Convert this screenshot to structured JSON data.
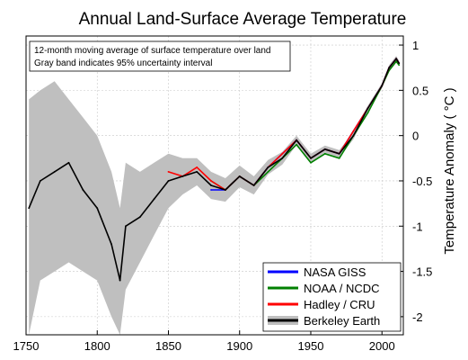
{
  "chart_data": {
    "type": "line",
    "title": "Annual Land-Surface Average Temperature",
    "xlabel": "",
    "ylabel": "Temperature Anomaly ( °C )",
    "xlim": [
      1750,
      2015
    ],
    "ylim": [
      -2.2,
      1.1
    ],
    "xticks": [
      "1750",
      "1800",
      "1850",
      "1900",
      "1950",
      "2000"
    ],
    "yticks": [
      "1",
      "0.5",
      "0",
      "-0.5",
      "-1",
      "-1.5",
      "-2"
    ],
    "y_axis_side": "right",
    "grid": true,
    "annotation": [
      "12-month moving average of surface temperature over land",
      "Gray band indicates 95% uncertainty interval"
    ],
    "legend_position": "bottom-right",
    "series": [
      {
        "name": "NASA GISS",
        "color": "#0000ff",
        "x": [
          1880,
          1890,
          1900,
          1910,
          1920,
          1930,
          1940,
          1950,
          1960,
          1970,
          1980,
          1990,
          2000,
          2005,
          2010,
          2012
        ],
        "values": [
          -0.6,
          -0.6,
          -0.45,
          -0.55,
          -0.35,
          -0.2,
          -0.05,
          -0.25,
          -0.15,
          -0.2,
          0.05,
          0.3,
          0.55,
          0.75,
          0.85,
          0.8
        ]
      },
      {
        "name": "NOAA / NCDC",
        "color": "#008000",
        "x": [
          1880,
          1890,
          1900,
          1910,
          1920,
          1930,
          1940,
          1950,
          1960,
          1970,
          1980,
          1990,
          2000,
          2005,
          2010,
          2012
        ],
        "values": [
          -0.5,
          -0.6,
          -0.45,
          -0.55,
          -0.4,
          -0.25,
          -0.1,
          -0.3,
          -0.2,
          -0.25,
          0.0,
          0.25,
          0.55,
          0.72,
          0.82,
          0.78
        ]
      },
      {
        "name": "Hadley / CRU",
        "color": "#ff0000",
        "x": [
          1850,
          1860,
          1870,
          1880,
          1890,
          1900,
          1910,
          1920,
          1930,
          1940,
          1950,
          1960,
          1970,
          1980,
          1990,
          2000,
          2005,
          2010,
          2012
        ],
        "values": [
          -0.4,
          -0.45,
          -0.35,
          -0.5,
          -0.6,
          -0.45,
          -0.55,
          -0.35,
          -0.2,
          -0.05,
          -0.25,
          -0.15,
          -0.2,
          0.05,
          0.3,
          0.55,
          0.75,
          0.85,
          0.8
        ]
      },
      {
        "name": "Berkeley Earth",
        "color": "#000000",
        "x": [
          1752,
          1760,
          1770,
          1780,
          1790,
          1800,
          1810,
          1816,
          1820,
          1830,
          1840,
          1850,
          1860,
          1870,
          1880,
          1890,
          1900,
          1910,
          1920,
          1930,
          1940,
          1950,
          1960,
          1970,
          1980,
          1990,
          2000,
          2005,
          2010,
          2012
        ],
        "values": [
          -0.8,
          -0.5,
          -0.4,
          -0.3,
          -0.6,
          -0.8,
          -1.2,
          -1.6,
          -1.0,
          -0.9,
          -0.7,
          -0.5,
          -0.45,
          -0.4,
          -0.55,
          -0.6,
          -0.45,
          -0.55,
          -0.35,
          -0.25,
          -0.05,
          -0.25,
          -0.15,
          -0.2,
          0.0,
          0.3,
          0.55,
          0.75,
          0.85,
          0.8
        ]
      }
    ],
    "uncertainty_band": {
      "name": "95% uncertainty interval",
      "color": "#bfbfbf",
      "x": [
        1752,
        1760,
        1770,
        1780,
        1790,
        1800,
        1810,
        1816,
        1820,
        1830,
        1840,
        1850,
        1860,
        1870,
        1880,
        1890,
        1900,
        1910,
        1920,
        1930,
        1940,
        1950,
        1960,
        1970,
        1980,
        1990,
        2000,
        2005,
        2010,
        2012
      ],
      "upper": [
        0.4,
        0.5,
        0.6,
        0.4,
        0.2,
        0.0,
        -0.4,
        -0.8,
        -0.3,
        -0.4,
        -0.3,
        -0.2,
        -0.25,
        -0.25,
        -0.4,
        -0.47,
        -0.33,
        -0.45,
        -0.27,
        -0.18,
        0.0,
        -0.2,
        -0.11,
        -0.16,
        0.04,
        0.33,
        0.58,
        0.78,
        0.88,
        0.83
      ],
      "lower": [
        -2.2,
        -1.6,
        -1.5,
        -1.4,
        -1.5,
        -1.6,
        -2.0,
        -2.2,
        -1.7,
        -1.4,
        -1.1,
        -0.8,
        -0.65,
        -0.55,
        -0.7,
        -0.73,
        -0.57,
        -0.65,
        -0.43,
        -0.32,
        -0.1,
        -0.3,
        -0.19,
        -0.24,
        -0.04,
        0.27,
        0.52,
        0.72,
        0.82,
        0.77
      ]
    }
  }
}
